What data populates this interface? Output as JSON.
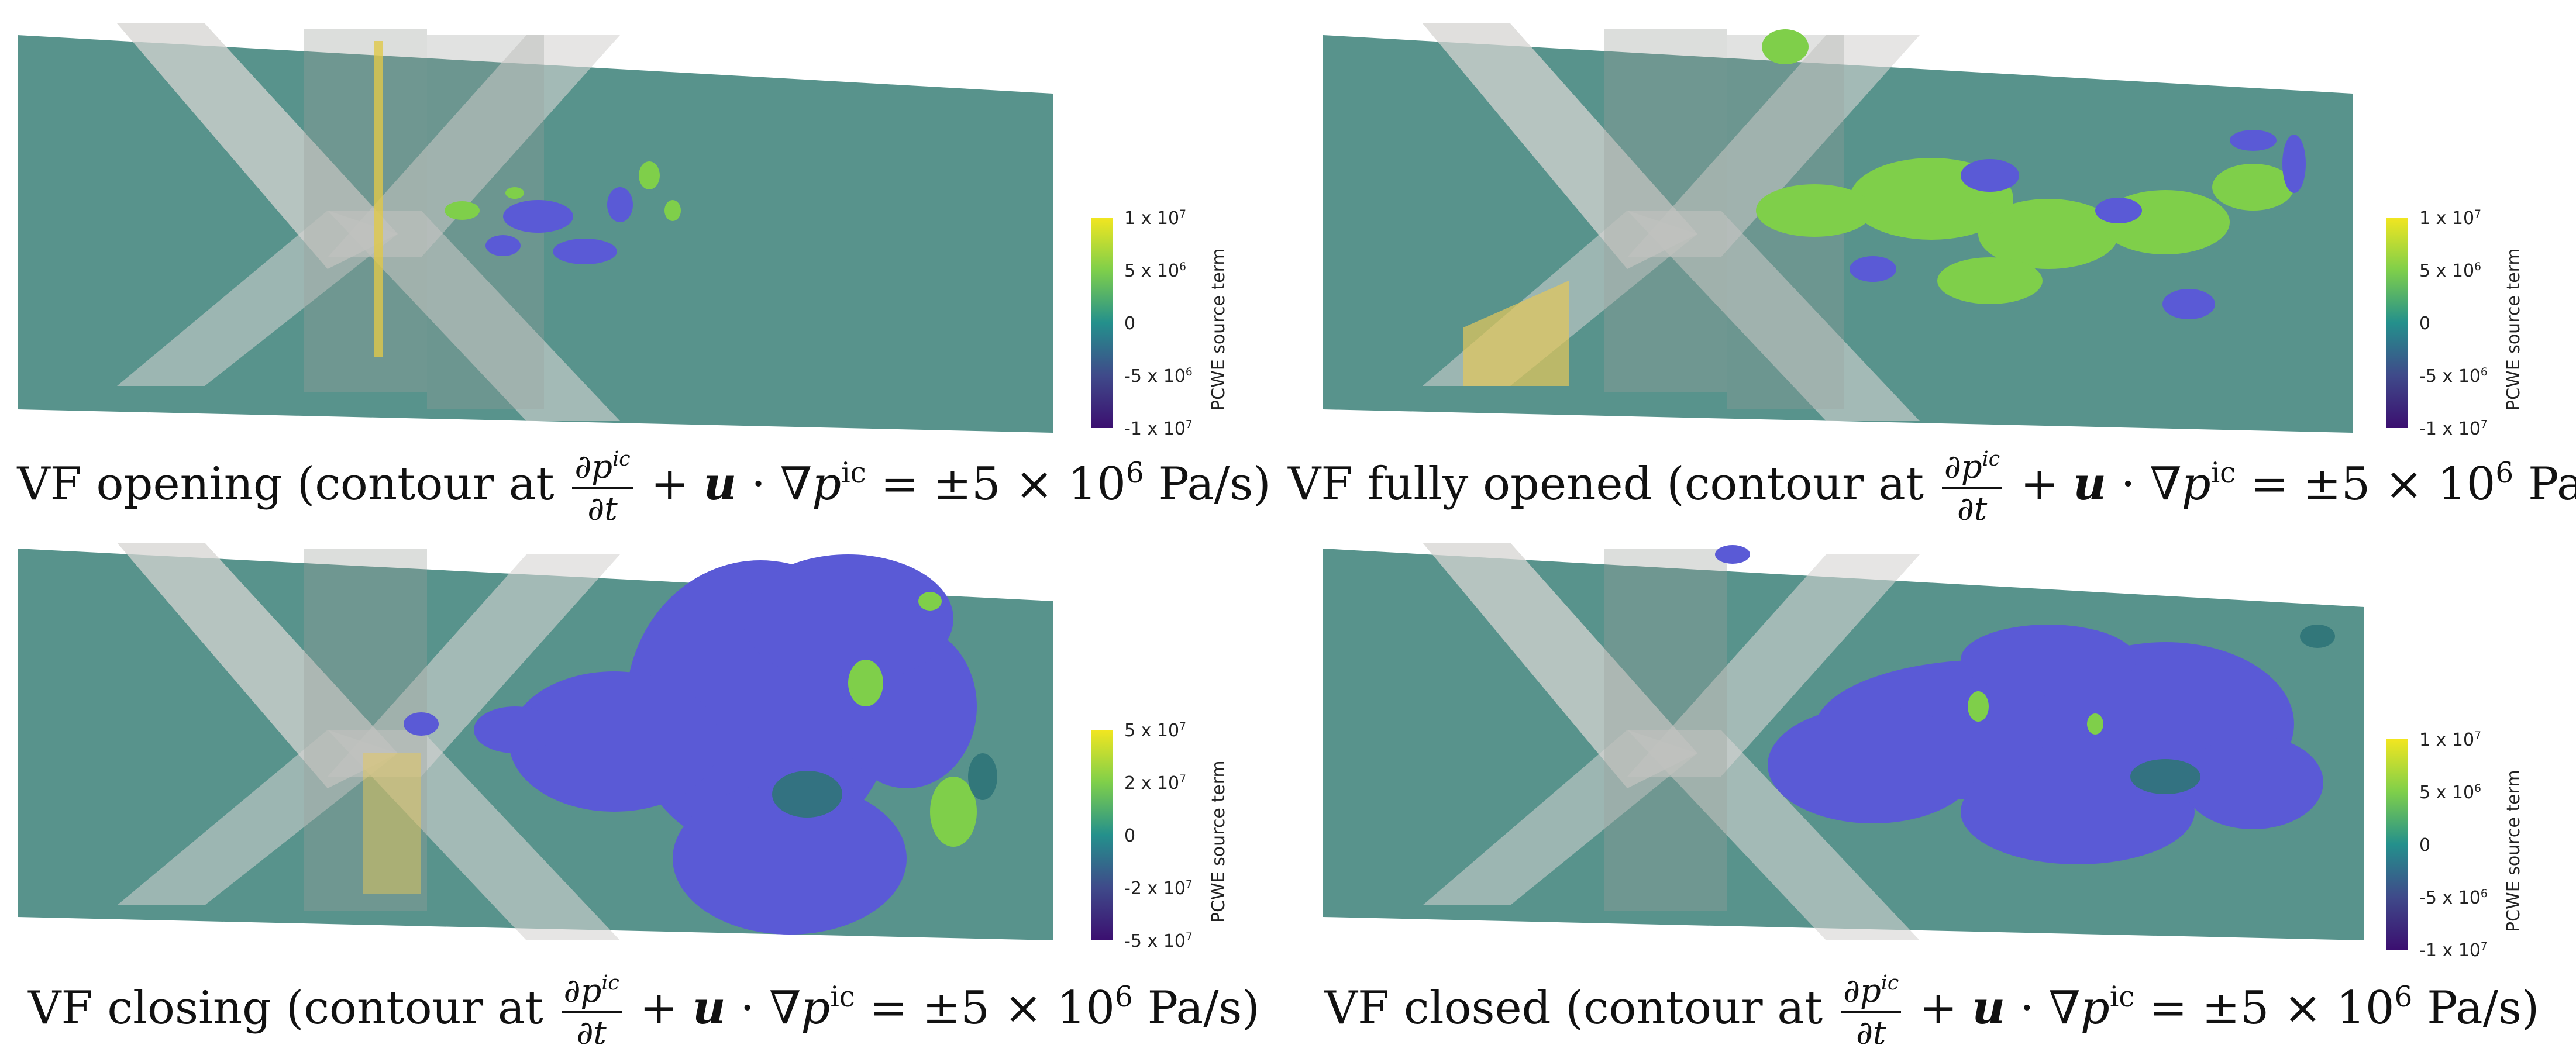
{
  "colors": {
    "sheet": "#4f8d86",
    "vortex_green": "#7fcf4a",
    "vortex_blue": "#5a5ad6",
    "valve_gray": "#cfcfcf",
    "cb_top": "#f2e620",
    "cb_mid": "#24908c",
    "cb_bottom": "#3b0f70"
  },
  "caption_common": {
    "mid": "(contour at",
    "num": "∂p",
    "num_sup": "ic",
    "den": "∂t",
    "plus": "+",
    "u": "u",
    "dot": "·",
    "nabla": "∇p",
    "nabla_sup": "ic",
    "eq": "= ±5 × 10",
    "exp": "6",
    "unit": "Pa/s)"
  },
  "colorbar_title": "PCWE source term",
  "panels": [
    {
      "prefix": "VF opening",
      "ticks": [
        {
          "base": "1 x 10",
          "exp": "7"
        },
        {
          "base": "5 x 10",
          "exp": "6"
        },
        {
          "base": "0",
          "exp": ""
        },
        {
          "base": "-5 x 10",
          "exp": "6"
        },
        {
          "base": "-1 x 10",
          "exp": "7"
        }
      ]
    },
    {
      "prefix": "VF fully opened",
      "ticks": [
        {
          "base": "1 x 10",
          "exp": "7"
        },
        {
          "base": "5 x 10",
          "exp": "6"
        },
        {
          "base": "0",
          "exp": ""
        },
        {
          "base": "-5 x 10",
          "exp": "6"
        },
        {
          "base": "-1 x 10",
          "exp": "7"
        }
      ]
    },
    {
      "prefix": "VF closing",
      "ticks": [
        {
          "base": "5 x 10",
          "exp": "7"
        },
        {
          "base": "2 x 10",
          "exp": "7"
        },
        {
          "base": "0",
          "exp": ""
        },
        {
          "base": "-2 x 10",
          "exp": "7"
        },
        {
          "base": "-5 x 10",
          "exp": "7"
        }
      ]
    },
    {
      "prefix": "VF closed",
      "ticks": [
        {
          "base": "1 x 10",
          "exp": "7"
        },
        {
          "base": "5 x 10",
          "exp": "6"
        },
        {
          "base": "0",
          "exp": ""
        },
        {
          "base": "-5 x 10",
          "exp": "6"
        },
        {
          "base": "-1 x 10",
          "exp": "7"
        }
      ]
    }
  ]
}
